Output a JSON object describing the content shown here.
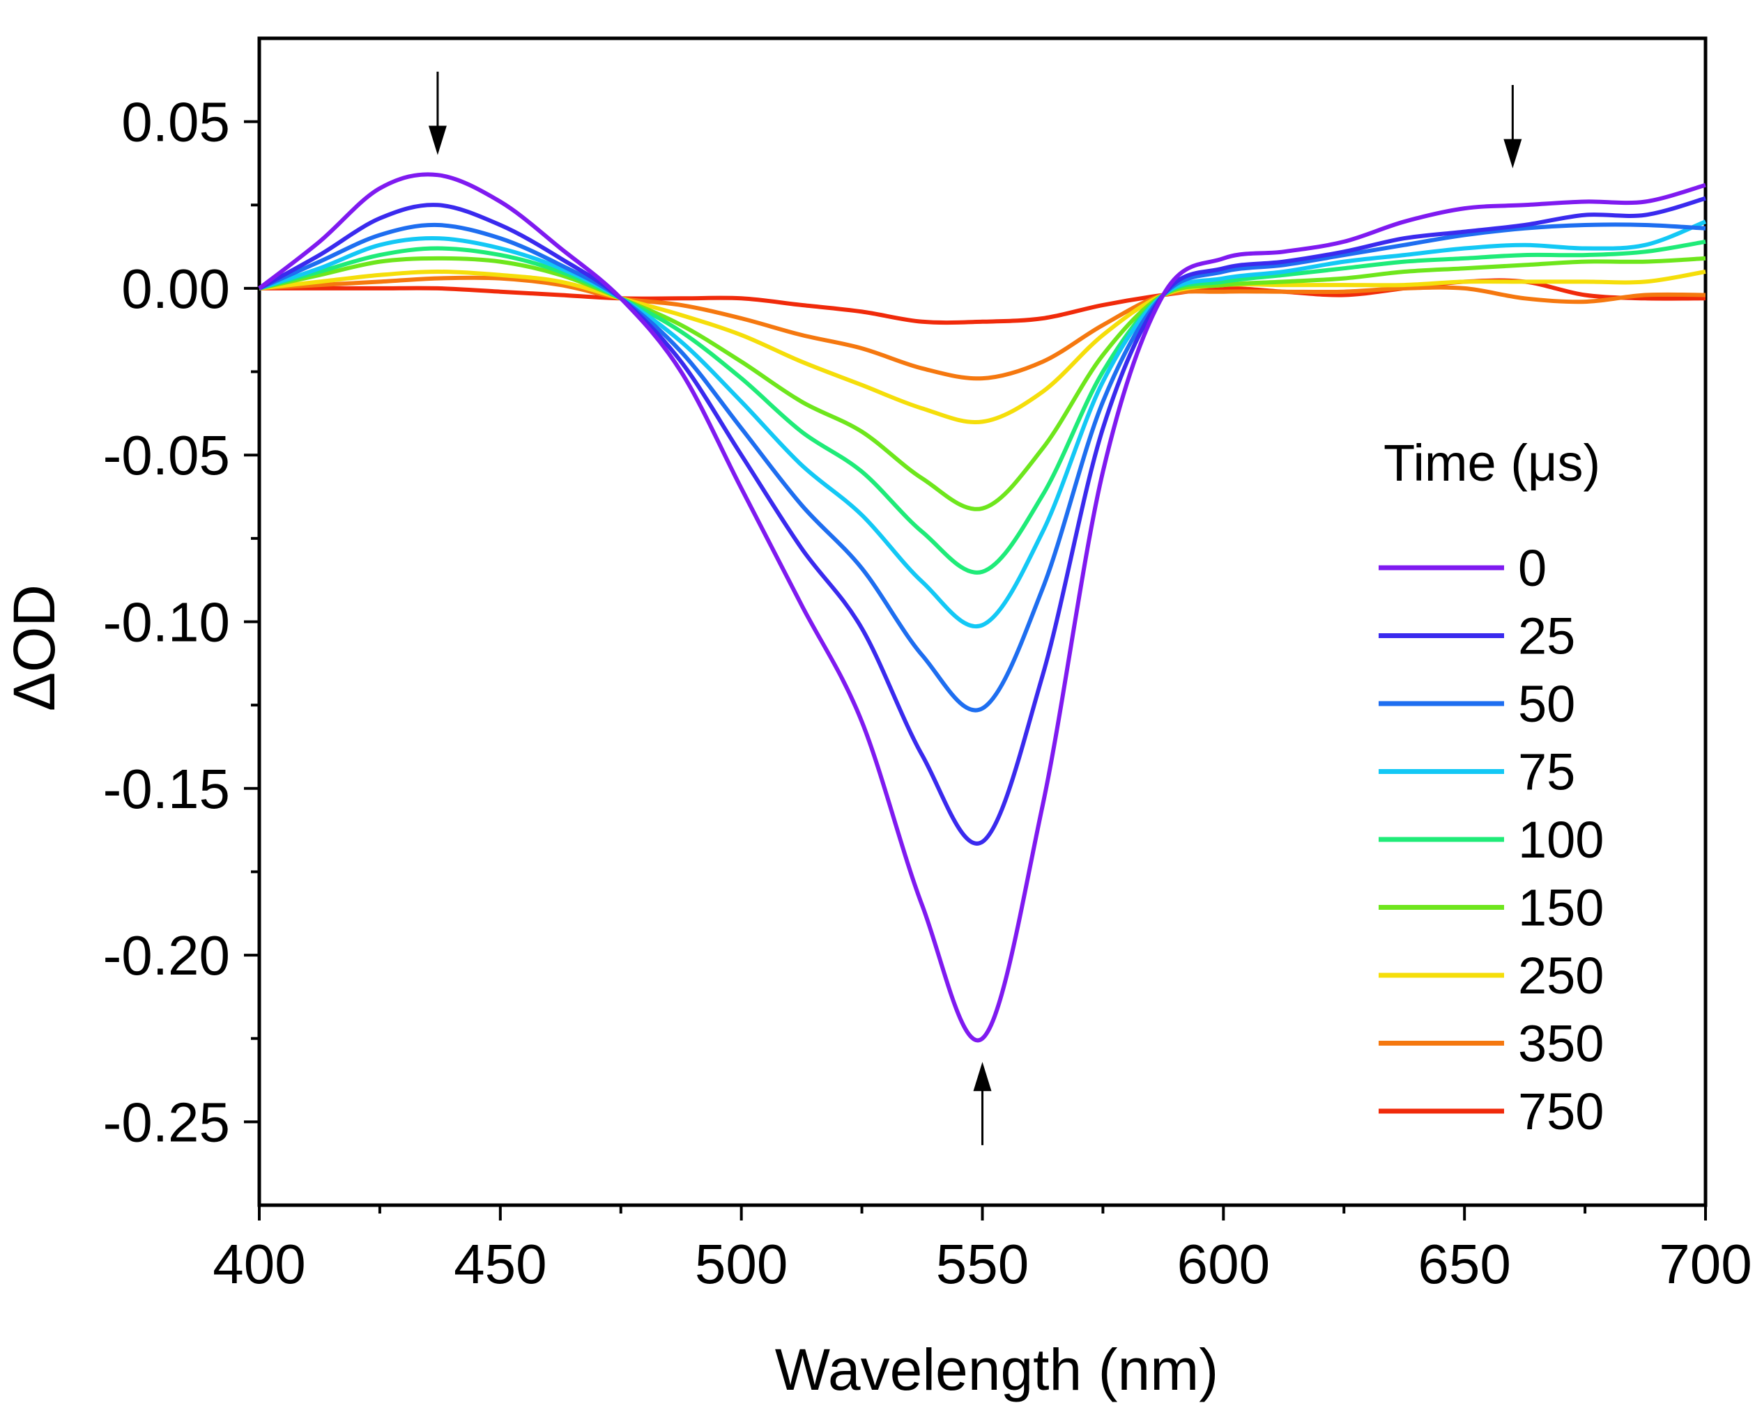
{
  "chart_data": {
    "type": "line",
    "xlabel": "Wavelength (nm)",
    "ylabel": "ΔOD",
    "xlim": [
      400,
      700
    ],
    "ylim": [
      -0.275,
      0.075
    ],
    "x_ticks": [
      400,
      450,
      500,
      550,
      600,
      650,
      700
    ],
    "x_tick_labels": [
      "400",
      "450",
      "500",
      "550",
      "600",
      "650",
      "700"
    ],
    "y_ticks": [
      0.05,
      0.0,
      -0.05,
      -0.1,
      -0.15,
      -0.2,
      -0.25
    ],
    "y_tick_labels": [
      "0.05",
      "0.00",
      "-0.05",
      "-0.10",
      "-0.15",
      "-0.20",
      "-0.25"
    ],
    "legend": {
      "title": "Time (μs)",
      "position": "right"
    },
    "annotations": [
      {
        "type": "arrow-down",
        "x": 437,
        "y_from": 0.065,
        "y_to": 0.04
      },
      {
        "type": "arrow-down",
        "x": 660,
        "y_from": 0.061,
        "y_to": 0.036
      },
      {
        "type": "arrow-up",
        "x": 550,
        "y_from": -0.257,
        "y_to": -0.232
      }
    ],
    "x": [
      400,
      412.5,
      425,
      437,
      450,
      462.5,
      475,
      487.5,
      500,
      512.5,
      525,
      537.5,
      550,
      562.5,
      575,
      587.5,
      600,
      612.5,
      625,
      637.5,
      650,
      662.5,
      675,
      687.5,
      700
    ],
    "series": [
      {
        "name": "0",
        "color": "#7F1AF0",
        "values": [
          0,
          0.014,
          0.03,
          0.034,
          0.026,
          0.012,
          -0.003,
          -0.025,
          -0.06,
          -0.095,
          -0.13,
          -0.185,
          -0.225,
          -0.155,
          -0.055,
          -0.002,
          0.009,
          0.011,
          0.014,
          0.02,
          0.024,
          0.025,
          0.026,
          0.026,
          0.031
        ]
      },
      {
        "name": "25",
        "color": "#3A2AEE",
        "values": [
          0,
          0.01,
          0.021,
          0.025,
          0.019,
          0.009,
          -0.003,
          -0.022,
          -0.05,
          -0.078,
          -0.102,
          -0.14,
          -0.166,
          -0.116,
          -0.042,
          -0.002,
          0.006,
          0.008,
          0.011,
          0.015,
          0.017,
          0.019,
          0.022,
          0.022,
          0.027
        ]
      },
      {
        "name": "50",
        "color": "#1E6EF0",
        "values": [
          0,
          0.008,
          0.016,
          0.019,
          0.015,
          0.007,
          -0.003,
          -0.019,
          -0.042,
          -0.065,
          -0.084,
          -0.11,
          -0.126,
          -0.09,
          -0.034,
          -0.002,
          0.005,
          0.007,
          0.01,
          0.013,
          0.016,
          0.018,
          0.019,
          0.019,
          0.018
        ]
      },
      {
        "name": "75",
        "color": "#13C8F5",
        "values": [
          0,
          0.006,
          0.013,
          0.015,
          0.012,
          0.006,
          -0.003,
          -0.016,
          -0.034,
          -0.053,
          -0.068,
          -0.088,
          -0.101,
          -0.073,
          -0.028,
          -0.002,
          0.003,
          0.005,
          0.008,
          0.01,
          0.012,
          0.013,
          0.012,
          0.013,
          0.02
        ]
      },
      {
        "name": "100",
        "color": "#1FEB78",
        "values": [
          0,
          0.005,
          0.01,
          0.012,
          0.01,
          0.005,
          -0.003,
          -0.013,
          -0.027,
          -0.043,
          -0.055,
          -0.073,
          -0.085,
          -0.062,
          -0.025,
          -0.002,
          0.002,
          0.004,
          0.006,
          0.008,
          0.009,
          0.01,
          0.01,
          0.011,
          0.014
        ]
      },
      {
        "name": "150",
        "color": "#6EE61C",
        "values": [
          0,
          0.004,
          0.008,
          0.009,
          0.008,
          0.004,
          -0.003,
          -0.011,
          -0.022,
          -0.034,
          -0.043,
          -0.057,
          -0.066,
          -0.048,
          -0.02,
          -0.002,
          0.001,
          0.002,
          0.003,
          0.005,
          0.006,
          0.007,
          0.008,
          0.008,
          0.009
        ]
      },
      {
        "name": "250",
        "color": "#F5DE0A",
        "values": [
          0,
          0.002,
          0.004,
          0.005,
          0.004,
          0.002,
          -0.003,
          -0.008,
          -0.014,
          -0.022,
          -0.029,
          -0.036,
          -0.04,
          -0.031,
          -0.014,
          -0.002,
          0.001,
          0.001,
          0.001,
          0.001,
          0.002,
          0.002,
          0.002,
          0.002,
          0.005
        ]
      },
      {
        "name": "350",
        "color": "#F5780F",
        "values": [
          0,
          0.001,
          0.002,
          0.003,
          0.003,
          0.001,
          -0.003,
          -0.005,
          -0.009,
          -0.014,
          -0.018,
          -0.024,
          -0.027,
          -0.022,
          -0.011,
          -0.002,
          -0.001,
          -0.001,
          -0.001,
          0.0,
          0.0,
          -0.003,
          -0.004,
          -0.002,
          -0.002
        ]
      },
      {
        "name": "750",
        "color": "#F02A0A",
        "values": [
          0,
          0.0,
          0.0,
          0.0,
          -0.001,
          -0.002,
          -0.003,
          -0.003,
          -0.003,
          -0.005,
          -0.007,
          -0.01,
          -0.01,
          -0.009,
          -0.005,
          -0.002,
          0.0,
          -0.001,
          -0.002,
          0.0,
          0.002,
          0.002,
          -0.002,
          -0.003,
          -0.003
        ]
      }
    ]
  }
}
